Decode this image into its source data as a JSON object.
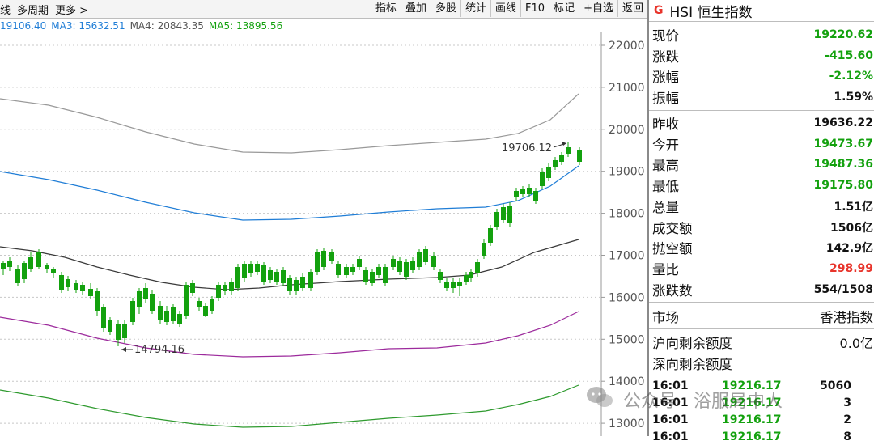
{
  "toolbar": {
    "left_items": [
      "线",
      "多周期",
      "更多 >"
    ],
    "buttons": [
      "指标",
      "叠加",
      "多股",
      "统计",
      "画线",
      "F10",
      "标记",
      "+自选",
      "返回"
    ]
  },
  "ma": [
    {
      "label": "19106.40",
      "color": "#1f7dd6"
    },
    {
      "label": "MA3: 15632.51",
      "color": "#1f7dd6"
    },
    {
      "label": "MA4: 20843.35",
      "color": "#555555"
    },
    {
      "label": "MA5: 13895.56",
      "color": "#13a10e"
    }
  ],
  "chart": {
    "y_ticks": [
      "22000",
      "21000",
      "20000",
      "19000",
      "18000",
      "17000",
      "16000",
      "15000",
      "14000",
      "13000"
    ],
    "high_annotation": "19706.12",
    "low_annotation": "14794.16",
    "colors": {
      "up": "#e8342b",
      "down": "#13a10e",
      "mid": "#3a3a3a",
      "upper": "#999999",
      "blue": "#1f7dd6",
      "purple": "#9c2a9c",
      "green": "#2e9a2e"
    }
  },
  "quote": {
    "badge": "G",
    "title": "HSI 恒生指数",
    "rows_1": [
      {
        "label": "现价",
        "value": "19220.62",
        "color": "green"
      },
      {
        "label": "涨跌",
        "value": "-415.60",
        "color": "green"
      },
      {
        "label": "涨幅",
        "value": "-2.12%",
        "color": "green"
      },
      {
        "label": "振幅",
        "value": "1.59%",
        "color": "black"
      }
    ],
    "rows_2": [
      {
        "label": "昨收",
        "value": "19636.22",
        "color": "black"
      },
      {
        "label": "今开",
        "value": "19473.67",
        "color": "green"
      },
      {
        "label": "最高",
        "value": "19487.36",
        "color": "green"
      },
      {
        "label": "最低",
        "value": "19175.80",
        "color": "green"
      },
      {
        "label": "总量",
        "value": "1.51亿",
        "color": "black"
      },
      {
        "label": "成交额",
        "value": "1506亿",
        "color": "black"
      },
      {
        "label": "抛空额",
        "value": "142.9亿",
        "color": "black"
      },
      {
        "label": "量比",
        "value": "298.99",
        "color": "red"
      },
      {
        "label": "涨跌数",
        "value": "554/1508",
        "color": "black"
      }
    ],
    "market": {
      "label": "市场",
      "value": "香港指数"
    },
    "quota": [
      {
        "label": "沪向剩余额度",
        "value": "0.0亿"
      },
      {
        "label": "深向剩余额度",
        "value": ""
      }
    ],
    "trades": [
      {
        "time": "16:01",
        "price": "19216.17",
        "vol": "5060"
      },
      {
        "time": "16:01",
        "price": "19216.17",
        "vol": "3"
      },
      {
        "time": "16:01",
        "price": "19216.17",
        "vol": "2"
      },
      {
        "time": "16:01",
        "price": "19216.17",
        "vol": "8"
      }
    ]
  },
  "watermark": "公众号 · 浴服局中人"
}
